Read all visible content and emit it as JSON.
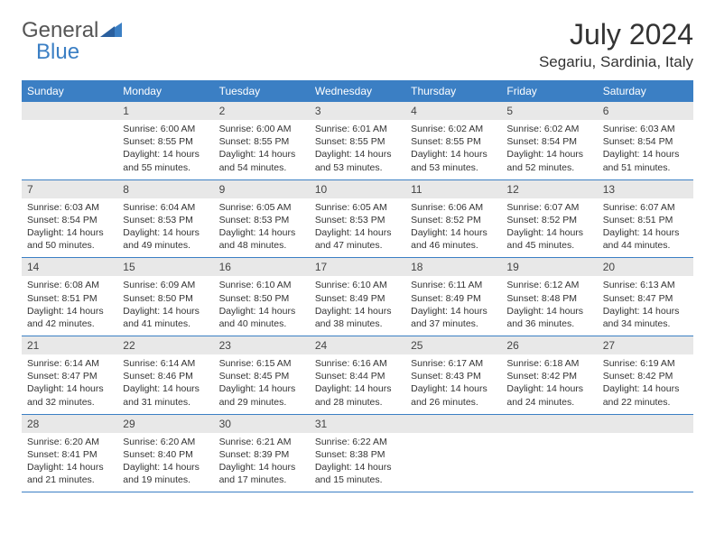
{
  "brand": {
    "text1": "General",
    "text2": "Blue",
    "icon_color": "#3b7fc4"
  },
  "title": "July 2024",
  "location": "Segariu, Sardinia, Italy",
  "colors": {
    "header_bg": "#3b7fc4",
    "daynum_bg": "#e8e8e8",
    "border": "#3b7fc4",
    "text": "#333333"
  },
  "days_of_week": [
    "Sunday",
    "Monday",
    "Tuesday",
    "Wednesday",
    "Thursday",
    "Friday",
    "Saturday"
  ],
  "weeks": [
    [
      {
        "n": "",
        "sunrise": "",
        "sunset": "",
        "daylight": ""
      },
      {
        "n": "1",
        "sunrise": "Sunrise: 6:00 AM",
        "sunset": "Sunset: 8:55 PM",
        "daylight": "Daylight: 14 hours and 55 minutes."
      },
      {
        "n": "2",
        "sunrise": "Sunrise: 6:00 AM",
        "sunset": "Sunset: 8:55 PM",
        "daylight": "Daylight: 14 hours and 54 minutes."
      },
      {
        "n": "3",
        "sunrise": "Sunrise: 6:01 AM",
        "sunset": "Sunset: 8:55 PM",
        "daylight": "Daylight: 14 hours and 53 minutes."
      },
      {
        "n": "4",
        "sunrise": "Sunrise: 6:02 AM",
        "sunset": "Sunset: 8:55 PM",
        "daylight": "Daylight: 14 hours and 53 minutes."
      },
      {
        "n": "5",
        "sunrise": "Sunrise: 6:02 AM",
        "sunset": "Sunset: 8:54 PM",
        "daylight": "Daylight: 14 hours and 52 minutes."
      },
      {
        "n": "6",
        "sunrise": "Sunrise: 6:03 AM",
        "sunset": "Sunset: 8:54 PM",
        "daylight": "Daylight: 14 hours and 51 minutes."
      }
    ],
    [
      {
        "n": "7",
        "sunrise": "Sunrise: 6:03 AM",
        "sunset": "Sunset: 8:54 PM",
        "daylight": "Daylight: 14 hours and 50 minutes."
      },
      {
        "n": "8",
        "sunrise": "Sunrise: 6:04 AM",
        "sunset": "Sunset: 8:53 PM",
        "daylight": "Daylight: 14 hours and 49 minutes."
      },
      {
        "n": "9",
        "sunrise": "Sunrise: 6:05 AM",
        "sunset": "Sunset: 8:53 PM",
        "daylight": "Daylight: 14 hours and 48 minutes."
      },
      {
        "n": "10",
        "sunrise": "Sunrise: 6:05 AM",
        "sunset": "Sunset: 8:53 PM",
        "daylight": "Daylight: 14 hours and 47 minutes."
      },
      {
        "n": "11",
        "sunrise": "Sunrise: 6:06 AM",
        "sunset": "Sunset: 8:52 PM",
        "daylight": "Daylight: 14 hours and 46 minutes."
      },
      {
        "n": "12",
        "sunrise": "Sunrise: 6:07 AM",
        "sunset": "Sunset: 8:52 PM",
        "daylight": "Daylight: 14 hours and 45 minutes."
      },
      {
        "n": "13",
        "sunrise": "Sunrise: 6:07 AM",
        "sunset": "Sunset: 8:51 PM",
        "daylight": "Daylight: 14 hours and 44 minutes."
      }
    ],
    [
      {
        "n": "14",
        "sunrise": "Sunrise: 6:08 AM",
        "sunset": "Sunset: 8:51 PM",
        "daylight": "Daylight: 14 hours and 42 minutes."
      },
      {
        "n": "15",
        "sunrise": "Sunrise: 6:09 AM",
        "sunset": "Sunset: 8:50 PM",
        "daylight": "Daylight: 14 hours and 41 minutes."
      },
      {
        "n": "16",
        "sunrise": "Sunrise: 6:10 AM",
        "sunset": "Sunset: 8:50 PM",
        "daylight": "Daylight: 14 hours and 40 minutes."
      },
      {
        "n": "17",
        "sunrise": "Sunrise: 6:10 AM",
        "sunset": "Sunset: 8:49 PM",
        "daylight": "Daylight: 14 hours and 38 minutes."
      },
      {
        "n": "18",
        "sunrise": "Sunrise: 6:11 AM",
        "sunset": "Sunset: 8:49 PM",
        "daylight": "Daylight: 14 hours and 37 minutes."
      },
      {
        "n": "19",
        "sunrise": "Sunrise: 6:12 AM",
        "sunset": "Sunset: 8:48 PM",
        "daylight": "Daylight: 14 hours and 36 minutes."
      },
      {
        "n": "20",
        "sunrise": "Sunrise: 6:13 AM",
        "sunset": "Sunset: 8:47 PM",
        "daylight": "Daylight: 14 hours and 34 minutes."
      }
    ],
    [
      {
        "n": "21",
        "sunrise": "Sunrise: 6:14 AM",
        "sunset": "Sunset: 8:47 PM",
        "daylight": "Daylight: 14 hours and 32 minutes."
      },
      {
        "n": "22",
        "sunrise": "Sunrise: 6:14 AM",
        "sunset": "Sunset: 8:46 PM",
        "daylight": "Daylight: 14 hours and 31 minutes."
      },
      {
        "n": "23",
        "sunrise": "Sunrise: 6:15 AM",
        "sunset": "Sunset: 8:45 PM",
        "daylight": "Daylight: 14 hours and 29 minutes."
      },
      {
        "n": "24",
        "sunrise": "Sunrise: 6:16 AM",
        "sunset": "Sunset: 8:44 PM",
        "daylight": "Daylight: 14 hours and 28 minutes."
      },
      {
        "n": "25",
        "sunrise": "Sunrise: 6:17 AM",
        "sunset": "Sunset: 8:43 PM",
        "daylight": "Daylight: 14 hours and 26 minutes."
      },
      {
        "n": "26",
        "sunrise": "Sunrise: 6:18 AM",
        "sunset": "Sunset: 8:42 PM",
        "daylight": "Daylight: 14 hours and 24 minutes."
      },
      {
        "n": "27",
        "sunrise": "Sunrise: 6:19 AM",
        "sunset": "Sunset: 8:42 PM",
        "daylight": "Daylight: 14 hours and 22 minutes."
      }
    ],
    [
      {
        "n": "28",
        "sunrise": "Sunrise: 6:20 AM",
        "sunset": "Sunset: 8:41 PM",
        "daylight": "Daylight: 14 hours and 21 minutes."
      },
      {
        "n": "29",
        "sunrise": "Sunrise: 6:20 AM",
        "sunset": "Sunset: 8:40 PM",
        "daylight": "Daylight: 14 hours and 19 minutes."
      },
      {
        "n": "30",
        "sunrise": "Sunrise: 6:21 AM",
        "sunset": "Sunset: 8:39 PM",
        "daylight": "Daylight: 14 hours and 17 minutes."
      },
      {
        "n": "31",
        "sunrise": "Sunrise: 6:22 AM",
        "sunset": "Sunset: 8:38 PM",
        "daylight": "Daylight: 14 hours and 15 minutes."
      },
      {
        "n": "",
        "sunrise": "",
        "sunset": "",
        "daylight": ""
      },
      {
        "n": "",
        "sunrise": "",
        "sunset": "",
        "daylight": ""
      },
      {
        "n": "",
        "sunrise": "",
        "sunset": "",
        "daylight": ""
      }
    ]
  ]
}
